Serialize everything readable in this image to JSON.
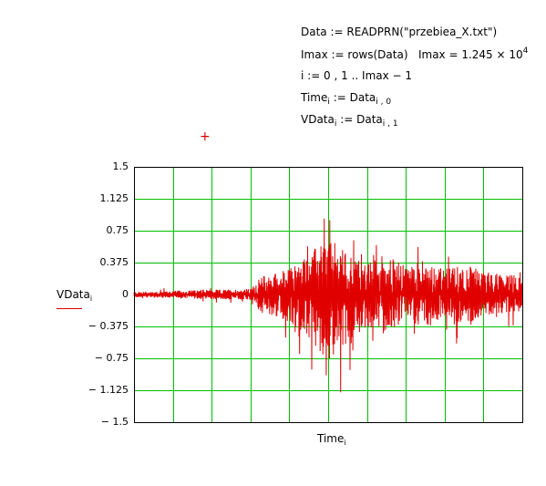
{
  "worksheet": {
    "expr1": "Data := READPRN(\"przebiea_X.txt\")",
    "expr2_a": "Imax := rows(Data)",
    "expr2_b": "Imax = 1.245 × 10",
    "expr2_exp": "4",
    "expr3": "i := 0 , 1 .. Imax − 1",
    "expr4_lhs": "Time",
    "expr4_sub": "i",
    "expr4_mid": " := Data",
    "expr4_sub2": "i , 0",
    "expr5_lhs": "VData",
    "expr5_sub": "i",
    "expr5_mid": " := Data",
    "expr5_sub2": "i , 1",
    "cursor_symbol": "+"
  },
  "chart_data": {
    "type": "line",
    "xlabel": "Time",
    "xlabel_sub": "i",
    "ylabel": "VData",
    "ylabel_sub": "i",
    "ylim": [
      -1.5,
      1.5
    ],
    "yticks": [
      1.5,
      1.125,
      0.75,
      0.375,
      0,
      -0.375,
      -0.75,
      -1.125,
      -1.5
    ],
    "ytick_labels": [
      "1.5",
      "1.125",
      "0.75",
      "0.375",
      "0",
      "− 0.375",
      "− 0.75",
      "− 1.125",
      "− 1.5"
    ],
    "xlim": [
      0,
      12450
    ],
    "x_gridlines": 10,
    "grid": true,
    "series": [
      {
        "color": "#e00000",
        "envelope": {
          "x": [
            0,
            1245,
            2490,
            3735,
            4100,
            4980,
            5500,
            6225,
            7000,
            7470,
            8000,
            8715,
            9300,
            9960,
            10600,
            11205,
            12450
          ],
          "pos": [
            0.06,
            0.08,
            0.1,
            0.12,
            0.4,
            0.55,
            0.85,
            1.2,
            0.85,
            0.65,
            0.9,
            0.6,
            0.75,
            0.55,
            0.65,
            0.5,
            0.4
          ],
          "neg": [
            -0.06,
            -0.08,
            -0.1,
            -0.12,
            -0.4,
            -0.6,
            -0.9,
            -1.4,
            -0.95,
            -0.7,
            -0.85,
            -0.55,
            -0.7,
            -0.5,
            -0.65,
            -0.45,
            -0.35
          ]
        }
      }
    ],
    "grid_color": "#00c000",
    "axis_color": "#000000"
  }
}
